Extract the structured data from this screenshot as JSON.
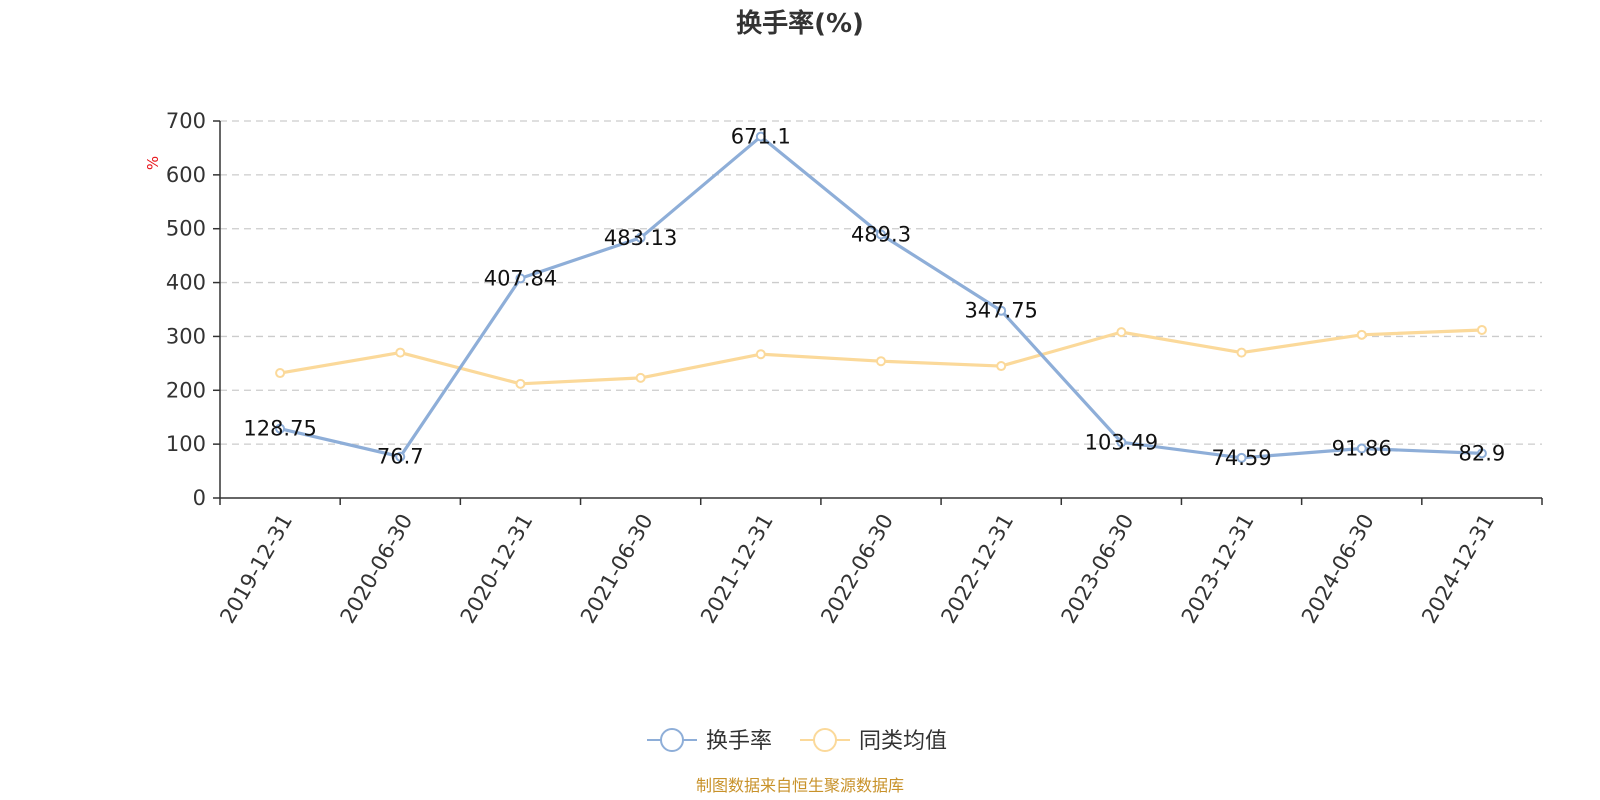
{
  "chart_data": {
    "type": "line",
    "title": "换手率(%)",
    "unit_label": "%",
    "categories": [
      "2019-12-31",
      "2020-06-30",
      "2020-12-31",
      "2021-06-30",
      "2021-12-31",
      "2022-06-30",
      "2022-12-31",
      "2023-06-30",
      "2023-12-31",
      "2024-06-30",
      "2024-12-31"
    ],
    "series": [
      {
        "name": "换手率",
        "color": "#8eaed8",
        "values": [
          128.75,
          76.7,
          407.84,
          483.13,
          671.1,
          489.3,
          347.75,
          103.49,
          74.59,
          91.86,
          82.9
        ],
        "labels": [
          "128.75",
          "76.7",
          "407.84",
          "483.13",
          "671.1",
          "489.3",
          "347.75",
          "103.49",
          "74.59",
          "91.86",
          "82.9"
        ]
      },
      {
        "name": "同类均值",
        "color": "#fbd99a",
        "values": [
          232,
          270,
          212,
          223,
          267,
          254,
          245,
          308,
          270,
          303,
          312
        ]
      }
    ],
    "y_ticks": [
      "0",
      "100",
      "200",
      "300",
      "400",
      "500",
      "600",
      "700"
    ],
    "ylim": [
      0,
      700
    ],
    "grid": true,
    "legend_position": "bottom"
  },
  "source_note": "制图数据来自恒生聚源数据库"
}
